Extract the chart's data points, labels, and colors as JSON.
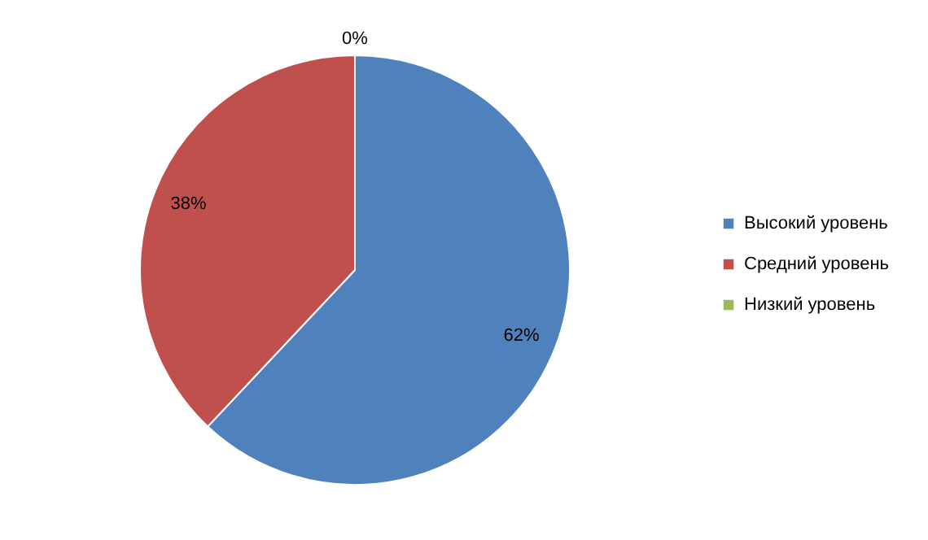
{
  "chart_data": {
    "type": "pie",
    "categories": [
      "Высокий уровень",
      "Средний  уровень",
      "Низкий уровень"
    ],
    "values": [
      62,
      38,
      0
    ],
    "colors": [
      "#4f81bd",
      "#c0504d",
      "#9bbb59"
    ],
    "value_labels": [
      "62%",
      "38%",
      "0%"
    ],
    "legend": "right"
  }
}
